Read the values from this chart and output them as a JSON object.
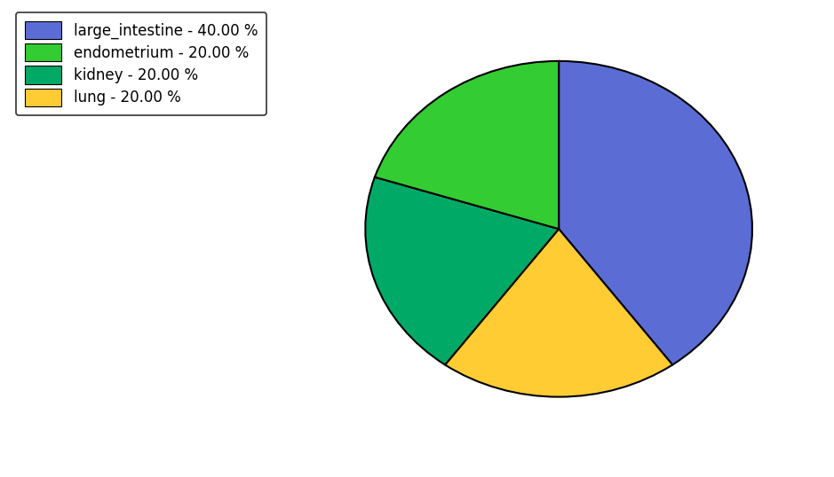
{
  "labels": [
    "large_intestine",
    "lung",
    "kidney",
    "endometrium"
  ],
  "values": [
    40.0,
    20.0,
    20.0,
    20.0
  ],
  "colors": [
    "#5b6dd4",
    "#ffcc33",
    "#00aa66",
    "#33cc33"
  ],
  "legend_labels": [
    "large_intestine - 40.00 %",
    "endometrium - 20.00 %",
    "kidney - 20.00 %",
    "lung - 20.00 %"
  ],
  "legend_colors": [
    "#5b6dd4",
    "#33cc33",
    "#00aa66",
    "#ffcc33"
  ],
  "startangle": 90,
  "figsize": [
    9.39,
    5.38
  ],
  "dpi": 100
}
